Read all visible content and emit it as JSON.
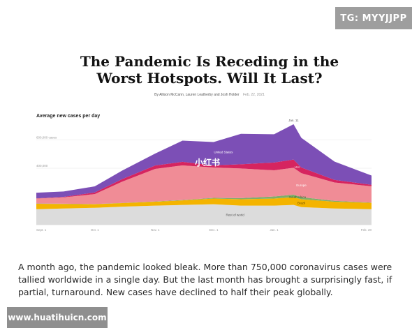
{
  "watermark_tag": "TG: MYYJJPP",
  "website_tag": "www.huatihuicn.com",
  "overlay_mark": "小红书",
  "article": {
    "title_line1": "The Pandemic Is Receding in the",
    "title_line2": "Worst Hotspots. Will It Last?",
    "byline": "By Allison McCann, Lauren Leatherby and Josh Holder",
    "date": "Feb. 22, 2021",
    "caption": "A month ago, the pandemic looked bleak. More than 750,000 coronavirus cases were tallied worldwide in a single day. But the last month has brought a surprisingly fast, if partial, turnaround. New cases have declined to half their peak globally."
  },
  "chart_data": {
    "type": "area",
    "stacked": true,
    "title": "Average new cases per day",
    "xlabel": "",
    "ylabel": "",
    "x": [
      "Sept. 1",
      "Sept. 15",
      "Oct. 1",
      "Oct. 15",
      "Nov. 1",
      "Nov. 15",
      "Dec. 1",
      "Dec. 15",
      "Jan. 1",
      "Jan. 11",
      "Jan. 15",
      "Feb. 1",
      "Feb. 20"
    ],
    "x_tick_labels": [
      "Sept. 1",
      "Oct. 1",
      "Nov. 1",
      "Dec. 1",
      "Jan. 1",
      "Feb. 20"
    ],
    "y_tick_labels": [
      {
        "value": 600000,
        "label": "600,000 cases"
      },
      {
        "value": 400000,
        "label": "400,000"
      }
    ],
    "ylim": [
      0,
      800000
    ],
    "grid": true,
    "annotations": [
      {
        "x": "Jan. 11",
        "label": "Jan. 11"
      }
    ],
    "series": [
      {
        "name": "Rest of world",
        "color": "#dcdcdc",
        "values": [
          110000,
          115000,
          120000,
          128000,
          135000,
          140000,
          145000,
          135000,
          135000,
          140000,
          125000,
          115000,
          110000
        ]
      },
      {
        "name": "Brazil",
        "color": "#f4b400",
        "values": [
          38000,
          32000,
          25000,
          25000,
          28000,
          32000,
          40000,
          45000,
          50000,
          55000,
          55000,
          48000,
          45000
        ]
      },
      {
        "name": "South Africa",
        "color": "#7fae6b",
        "values": [
          2000,
          2000,
          1500,
          1500,
          2000,
          3000,
          5000,
          8000,
          15000,
          18000,
          15000,
          6000,
          2000
        ]
      },
      {
        "name": "Europe",
        "color": "#f08c96",
        "values": [
          35000,
          45000,
          70000,
          150000,
          230000,
          245000,
          215000,
          210000,
          185000,
          190000,
          170000,
          130000,
          115000
        ]
      },
      {
        "name": "U.K.",
        "color": "#d6245f",
        "values": [
          1500,
          3000,
          12000,
          18000,
          24000,
          25000,
          15000,
          30000,
          55000,
          58000,
          40000,
          18000,
          11000
        ]
      },
      {
        "name": "United States",
        "color": "#7c4fb6",
        "values": [
          40000,
          38000,
          43000,
          60000,
          85000,
          150000,
          165000,
          215000,
          200000,
          250000,
          210000,
          130000,
          65000
        ]
      }
    ]
  }
}
